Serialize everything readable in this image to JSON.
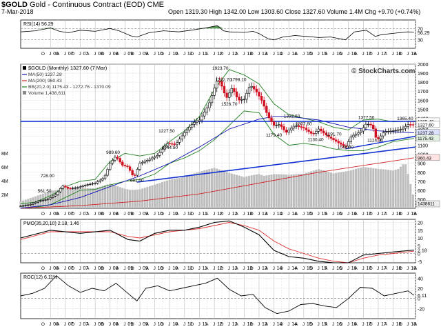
{
  "header": {
    "symbol": "$GOLD",
    "name": "Gold - Continuous Contract (EOD)",
    "exchange": "CME",
    "date": "7-Mar-2018",
    "quote": "Open 1319.30  High 1342.00  Low 1303.60  Close 1327.60  Volume 1.4M  Chg +9.70 (+0.74%)",
    "watermark": "© StockCharts.com"
  },
  "colors": {
    "price_up": "#000000",
    "price_down": "#d01020",
    "ma50": "#1010b0",
    "ma200": "#d02020",
    "bollinger": "#208020",
    "volume": "#bdbdbd",
    "trendline": "#1030d0",
    "rsi_fill": "#3c8a3c",
    "signal": "#e03030"
  },
  "chart_data": [
    {
      "type": "line",
      "title": "RSI(14) 56.29",
      "ylim": [
        0,
        100
      ],
      "reference_lines": [
        30,
        70
      ],
      "tick_labels_right": [
        "70",
        "56.29",
        "30"
      ],
      "series": [
        {
          "name": "RSI(14)",
          "x": [
            2005.0,
            2005.5,
            2006.0,
            2006.3,
            2006.6,
            2007.0,
            2007.5,
            2008.0,
            2008.3,
            2008.7,
            2008.9,
            2009.3,
            2009.8,
            2010.3,
            2010.8,
            2011.2,
            2011.6,
            2011.8,
            2012.0,
            2012.5,
            2012.8,
            2013.0,
            2013.3,
            2013.5,
            2013.8,
            2014.2,
            2014.6,
            2015.0,
            2015.4,
            2015.9,
            2016.2,
            2016.6,
            2016.9,
            2017.1,
            2017.6,
            2018.0,
            2018.2
          ],
          "values": [
            58,
            62,
            72,
            60,
            55,
            64,
            60,
            70,
            62,
            44,
            40,
            55,
            62,
            58,
            65,
            72,
            80,
            62,
            58,
            56,
            60,
            52,
            34,
            30,
            40,
            45,
            42,
            38,
            40,
            30,
            58,
            64,
            42,
            48,
            54,
            58,
            56.29
          ]
        }
      ]
    },
    {
      "type": "line",
      "title": "$GOLD (Monthly) 1327.60 (7 Mar)",
      "ylim": [
        400,
        2000
      ],
      "y_ticks": [
        500,
        600,
        700,
        800,
        900,
        1000,
        1100,
        1200,
        1300,
        1400,
        1500,
        1600,
        1700,
        1800,
        1900,
        2000
      ],
      "right_labels": [
        "1365.40",
        "1327.60",
        "1237.28",
        "1175.43",
        "960.43",
        "1438611"
      ],
      "price_annotations": [
        {
          "x": 2005.9,
          "y": 728.0,
          "text": "728.00"
        },
        {
          "x": 2005.8,
          "y": 561.5,
          "text": "561.50"
        },
        {
          "x": 2008.1,
          "y": 989.6,
          "text": "989.60"
        },
        {
          "x": 2008.9,
          "y": 681.0,
          "text": "681.00"
        },
        {
          "x": 2009.9,
          "y": 1227.5,
          "text": "1227.50"
        },
        {
          "x": 2010.0,
          "y": 1044.5,
          "text": "1044.50"
        },
        {
          "x": 2011.7,
          "y": 1923.7,
          "text": "1923.70"
        },
        {
          "x": 2011.8,
          "y": 1792.7,
          "text": "1792.70"
        },
        {
          "x": 2012.3,
          "y": 1798.1,
          "text": "1798.10"
        },
        {
          "x": 2012.0,
          "y": 1526.7,
          "text": "1526.70"
        },
        {
          "x": 2013.5,
          "y": 1179.4,
          "text": "1179.40"
        },
        {
          "x": 2014.1,
          "y": 1392.6,
          "text": "1392.60"
        },
        {
          "x": 2014.5,
          "y": 1307.8,
          "text": "1307.80"
        },
        {
          "x": 2014.9,
          "y": 1130.4,
          "text": "1130.40"
        },
        {
          "x": 2015.5,
          "y": 1191.7,
          "text": "1191.70"
        },
        {
          "x": 2015.9,
          "y": 1046.4,
          "text": "1046.40"
        },
        {
          "x": 2016.6,
          "y": 1377.5,
          "text": "1377.50"
        },
        {
          "x": 2016.9,
          "y": 1124.3,
          "text": "1124.30"
        },
        {
          "x": 2017.9,
          "y": 1365.4,
          "text": "1365.40"
        }
      ],
      "series": [
        {
          "name": "$GOLD (Monthly) 1327.60 (7 Mar)",
          "x": [
            2005.0,
            2005.3,
            2005.6,
            2005.9,
            2006.2,
            2006.4,
            2006.6,
            2006.9,
            2007.2,
            2007.5,
            2007.8,
            2008.0,
            2008.2,
            2008.4,
            2008.6,
            2008.8,
            2009.0,
            2009.3,
            2009.6,
            2009.9,
            2010.2,
            2010.5,
            2010.8,
            2011.0,
            2011.3,
            2011.6,
            2011.7,
            2011.9,
            2012.1,
            2012.3,
            2012.5,
            2012.7,
            2012.9,
            2013.1,
            2013.3,
            2013.5,
            2013.7,
            2013.9,
            2014.2,
            2014.5,
            2014.8,
            2015.0,
            2015.3,
            2015.6,
            2015.9,
            2016.1,
            2016.4,
            2016.6,
            2016.8,
            2016.95,
            2017.2,
            2017.5,
            2017.8,
            2018.0,
            2018.2
          ],
          "values": [
            425,
            440,
            480,
            500,
            560,
            650,
            620,
            630,
            660,
            680,
            740,
            900,
            980,
            880,
            860,
            740,
            900,
            940,
            990,
            1120,
            1110,
            1240,
            1350,
            1380,
            1540,
            1830,
            1800,
            1620,
            1740,
            1600,
            1610,
            1770,
            1700,
            1590,
            1420,
            1320,
            1330,
            1240,
            1320,
            1290,
            1220,
            1280,
            1200,
            1140,
            1080,
            1200,
            1250,
            1340,
            1320,
            1150,
            1250,
            1260,
            1280,
            1330,
            1327.6
          ]
        },
        {
          "name": "MA(50) 1237.28",
          "x": [
            2005.0,
            2006.0,
            2007.0,
            2008.0,
            2009.0,
            2010.0,
            2011.0,
            2012.0,
            2013.0,
            2013.5,
            2014.0,
            2014.5,
            2015.0,
            2015.5,
            2016.0,
            2016.5,
            2017.0,
            2017.5,
            2018.2
          ],
          "values": [
            400,
            440,
            520,
            640,
            760,
            900,
            1080,
            1280,
            1390,
            1420,
            1420,
            1400,
            1380,
            1340,
            1300,
            1280,
            1260,
            1250,
            1237.28
          ]
        },
        {
          "name": "MA(200) 960.43",
          "x": [
            2005.0,
            2007.0,
            2009.0,
            2011.0,
            2012.0,
            2013.0,
            2014.0,
            2015.0,
            2016.0,
            2017.0,
            2018.2
          ],
          "values": [
            400,
            430,
            480,
            560,
            620,
            680,
            740,
            800,
            850,
            900,
            960.43
          ]
        },
        {
          "name": "BB(20,2.0) 1175.43 - 1272.76 - 1370.09",
          "x": [
            2005.0,
            2005.5,
            2006.0,
            2006.5,
            2007.0,
            2007.5,
            2008.0,
            2008.5,
            2009.0,
            2009.5,
            2010.0,
            2010.5,
            2011.0,
            2011.5,
            2012.0,
            2012.5,
            2013.0,
            2013.5,
            2014.0,
            2014.5,
            2015.0,
            2015.5,
            2016.0,
            2016.5,
            2017.0,
            2017.5,
            2018.2
          ],
          "values": [
            450,
            470,
            540,
            640,
            700,
            720,
            920,
            1010,
            980,
            1010,
            1140,
            1260,
            1420,
            1720,
            1940,
            1880,
            1780,
            1560,
            1440,
            1400,
            1360,
            1300,
            1270,
            1380,
            1390,
            1360,
            1370.09
          ]
        },
        {
          "name": "BB lower band",
          "x": [
            2005.0,
            2005.5,
            2006.0,
            2006.5,
            2007.0,
            2007.5,
            2008.0,
            2008.5,
            2009.0,
            2009.5,
            2010.0,
            2010.5,
            2011.0,
            2011.5,
            2012.0,
            2012.5,
            2013.0,
            2013.5,
            2014.0,
            2014.5,
            2015.0,
            2015.5,
            2016.0,
            2016.5,
            2017.0,
            2017.5,
            2018.2
          ],
          "values": [
            400,
            410,
            440,
            520,
            600,
            610,
            660,
            700,
            720,
            780,
            900,
            960,
            1040,
            1160,
            1320,
            1480,
            1460,
            1220,
            1100,
            1120,
            1100,
            1060,
            1040,
            1040,
            1080,
            1140,
            1175.43
          ]
        },
        {
          "name": "Volume 1,438,611",
          "x": [
            2005.0,
            2005.5,
            2006.0,
            2006.5,
            2007.0,
            2007.5,
            2008.0,
            2008.5,
            2009.0,
            2009.5,
            2010.0,
            2010.5,
            2011.0,
            2011.5,
            2012.0,
            2012.5,
            2013.0,
            2013.5,
            2014.0,
            2014.5,
            2015.0,
            2015.5,
            2016.0,
            2016.5,
            2017.0,
            2017.5,
            2017.9,
            2018.2
          ],
          "values": [
            1.0,
            1.6,
            2.2,
            2.5,
            2.6,
            2.7,
            3.6,
            3.2,
            3.0,
            3.4,
            3.8,
            4.0,
            4.6,
            5.2,
            4.8,
            4.6,
            5.6,
            5.4,
            4.8,
            4.6,
            5.0,
            4.4,
            4.8,
            5.6,
            5.8,
            6.2,
            7.4,
            1.44
          ]
        }
      ],
      "volume_axis": {
        "labels": [
          "8M",
          "6M",
          "4M",
          "2M"
        ],
        "ylim": [
          0,
          9
        ]
      }
    },
    {
      "type": "line",
      "title": "PMO(35,20,10) 2.18, 1.46",
      "ylim": [
        -6,
        22
      ],
      "y_ticks": [
        0,
        5,
        10,
        15,
        20
      ],
      "tick_labels_right": [
        "20",
        "15",
        "10",
        "5",
        "2.18",
        "0",
        "-5"
      ],
      "series": [
        {
          "name": "PMO(35,20,10)",
          "x": [
            2005.0,
            2006.0,
            2007.0,
            2008.0,
            2008.6,
            2009.0,
            2009.5,
            2010.0,
            2010.5,
            2011.0,
            2011.5,
            2012.0,
            2012.5,
            2013.0,
            2013.5,
            2014.0,
            2014.5,
            2015.0,
            2015.5,
            2016.0,
            2016.5,
            2017.0,
            2017.5,
            2018.2
          ],
          "values": [
            10,
            15,
            13,
            15,
            9,
            8,
            13,
            15,
            15,
            17,
            20,
            21,
            17,
            12,
            2,
            -2,
            -3,
            -5,
            -6,
            -6,
            -1,
            0,
            1,
            2.18
          ]
        },
        {
          "name": "Signal",
          "x": [
            2005.0,
            2006.0,
            2007.0,
            2008.0,
            2008.6,
            2009.0,
            2009.5,
            2010.0,
            2010.5,
            2011.0,
            2011.5,
            2012.0,
            2012.5,
            2013.0,
            2013.5,
            2014.0,
            2014.5,
            2015.0,
            2015.5,
            2016.0,
            2016.5,
            2017.0,
            2017.5,
            2018.2
          ],
          "values": [
            9,
            14,
            14,
            14,
            11,
            10,
            12,
            14,
            15,
            16,
            18,
            20,
            18,
            15,
            8,
            3,
            0,
            -3,
            -5,
            -6,
            -3,
            -1,
            0,
            1.46
          ]
        }
      ]
    },
    {
      "type": "line",
      "title": "ROC(12) 6.11%",
      "ylim": [
        -40,
        50
      ],
      "y_ticks": [
        -20,
        0,
        20,
        40
      ],
      "tick_labels_right": [
        "40",
        "20",
        "6.11",
        "0",
        "-20"
      ],
      "series": [
        {
          "name": "ROC(12)",
          "x": [
            2005.0,
            2005.4,
            2005.8,
            2006.2,
            2006.6,
            2007.0,
            2007.4,
            2007.8,
            2008.2,
            2008.6,
            2008.9,
            2009.2,
            2009.6,
            2010.0,
            2010.4,
            2010.8,
            2011.2,
            2011.6,
            2012.0,
            2012.4,
            2012.8,
            2013.2,
            2013.6,
            2014.0,
            2014.4,
            2014.8,
            2015.2,
            2015.6,
            2016.0,
            2016.4,
            2016.8,
            2017.2,
            2017.6,
            2018.0,
            2018.2
          ],
          "values": [
            5,
            10,
            20,
            45,
            25,
            12,
            20,
            15,
            30,
            10,
            -5,
            20,
            25,
            15,
            20,
            25,
            30,
            40,
            18,
            5,
            8,
            -18,
            -30,
            -25,
            -12,
            -10,
            -15,
            -18,
            0,
            22,
            20,
            5,
            10,
            15,
            6.11
          ]
        }
      ]
    }
  ],
  "x_axis": {
    "month_ticks": [
      "O",
      "J",
      "A",
      "J",
      "O",
      "J",
      "A",
      "J",
      "O",
      "J",
      "A",
      "J",
      "O",
      "J",
      "A",
      "J",
      "O",
      "J",
      "A",
      "J",
      "O",
      "J",
      "A",
      "J",
      "O",
      "J",
      "A",
      "J",
      "O",
      "J",
      "A",
      "J",
      "O",
      "J",
      "A",
      "J",
      "O",
      "J",
      "A",
      "J",
      "O",
      "J",
      "A",
      "J",
      "O",
      "J",
      "A",
      "J",
      "O",
      "J",
      "A",
      "J",
      "O"
    ],
    "year_labels": [
      "06",
      "07",
      "08",
      "09",
      "10",
      "11",
      "12",
      "13",
      "14",
      "15",
      "16",
      "17",
      "18"
    ]
  }
}
